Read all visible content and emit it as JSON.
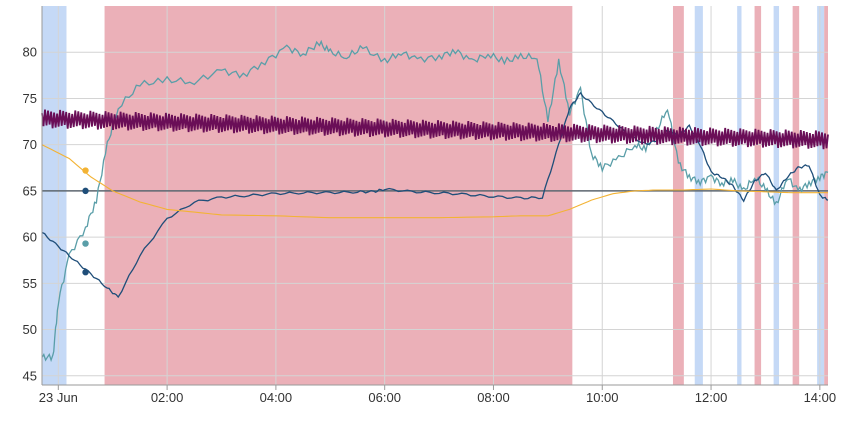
{
  "chart_data": {
    "type": "line",
    "title": "",
    "xlabel": "",
    "ylabel": "",
    "x_ticks": [
      "23 Jun",
      "02:00",
      "04:00",
      "06:00",
      "08:00",
      "10:00",
      "12:00",
      "14:00"
    ],
    "x_tick_hours": [
      0,
      2,
      4,
      6,
      8,
      10,
      12,
      14
    ],
    "xlim_hours": [
      -0.3,
      14.15
    ],
    "y_ticks": [
      45,
      50,
      55,
      60,
      65,
      70,
      75,
      80
    ],
    "ylim": [
      44,
      85
    ],
    "reference_line": 65,
    "grid": true,
    "legend": "none",
    "colors": {
      "blue_band": "#c5d9f6",
      "red_band": "#ebb0b8",
      "grid": "#d4d4d4",
      "reference": "#5d6770",
      "teal": "#5a9ea8",
      "navy": "#1f4e79",
      "orange": "#f3b334",
      "purple": "#6a0e57"
    },
    "bands": [
      {
        "kind": "blue",
        "start": -0.3,
        "end": 0.15
      },
      {
        "kind": "red",
        "start": 0.85,
        "end": 9.45
      },
      {
        "kind": "red",
        "start": 11.3,
        "end": 11.5
      },
      {
        "kind": "blue",
        "start": 11.7,
        "end": 11.85
      },
      {
        "kind": "blue",
        "start": 12.48,
        "end": 12.56
      },
      {
        "kind": "red",
        "start": 12.8,
        "end": 12.92
      },
      {
        "kind": "blue",
        "start": 13.15,
        "end": 13.25
      },
      {
        "kind": "red",
        "start": 13.5,
        "end": 13.62
      },
      {
        "kind": "blue",
        "start": 13.95,
        "end": 14.08
      },
      {
        "kind": "red",
        "start": 14.08,
        "end": 14.15
      }
    ],
    "series": [
      {
        "key": "teal",
        "x": [
          -0.3,
          -0.1,
          0.0,
          0.2,
          0.5,
          0.7,
          0.9,
          1.1,
          1.5,
          2.0,
          2.5,
          3.0,
          3.4,
          3.8,
          4.2,
          4.5,
          4.8,
          5.0,
          5.3,
          5.6,
          6.0,
          6.3,
          6.6,
          7.0,
          7.3,
          7.6,
          7.9,
          8.2,
          8.5,
          8.8,
          9.0,
          9.2,
          9.4,
          9.6,
          9.8,
          10.0,
          10.3,
          10.6,
          10.8,
          11.0,
          11.2,
          11.4,
          11.6,
          11.8,
          12.0,
          12.2,
          12.4,
          12.6,
          12.8,
          13.0,
          13.2,
          13.4,
          13.6,
          13.8,
          14.0,
          14.15
        ],
        "y": [
          47,
          47,
          53,
          58,
          61,
          64,
          70,
          74,
          76.5,
          77,
          76.8,
          78,
          77.5,
          79,
          80.5,
          79.8,
          81,
          80,
          79.5,
          80.5,
          79,
          80,
          79.2,
          79.5,
          80.2,
          79,
          79.8,
          79,
          79.5,
          79.5,
          72.5,
          79,
          73.5,
          76,
          69,
          67.5,
          68.5,
          70,
          69.5,
          71.5,
          74,
          68,
          66.5,
          66,
          66.5,
          65.8,
          66.2,
          65,
          66.5,
          65.2,
          63.5,
          66.5,
          65,
          65.8,
          66.5,
          67
        ]
      },
      {
        "key": "navy",
        "x": [
          -0.3,
          0.0,
          0.3,
          0.6,
          0.9,
          1.1,
          1.5,
          2.0,
          2.5,
          3.0,
          3.5,
          4.0,
          4.5,
          5.0,
          5.5,
          5.8,
          6.0,
          6.5,
          7.0,
          7.5,
          8.0,
          8.5,
          8.9,
          9.2,
          9.4,
          9.6,
          9.9,
          10.2,
          10.5,
          10.8,
          11.0,
          11.2,
          11.4,
          11.6,
          11.8,
          12.0,
          12.2,
          12.4,
          12.6,
          12.8,
          13.0,
          13.2,
          13.4,
          13.6,
          13.8,
          14.0,
          14.15
        ],
        "y": [
          60.5,
          59,
          57.5,
          56,
          54.5,
          53.5,
          58,
          62,
          63.8,
          64.3,
          64.5,
          64.7,
          64.8,
          64.8,
          64.9,
          64.9,
          65.2,
          64.9,
          64.8,
          64.6,
          64.4,
          64.2,
          64.3,
          70,
          74,
          75.5,
          74,
          72.5,
          71,
          70,
          70.5,
          71.5,
          71,
          72,
          70,
          67,
          66.5,
          65.5,
          64,
          66,
          67,
          65,
          66.5,
          67.5,
          67.8,
          64.5,
          64
        ]
      },
      {
        "key": "orange",
        "x": [
          -0.3,
          0.2,
          0.6,
          1.0,
          1.5,
          2.0,
          2.5,
          3.0,
          4.0,
          5.0,
          6.0,
          7.0,
          8.0,
          8.5,
          9.0,
          9.4,
          9.8,
          10.2,
          10.6,
          11.0,
          11.5,
          12.0,
          12.5,
          13.0,
          13.5,
          14.0,
          14.15
        ],
        "y": [
          70,
          68.5,
          66.5,
          65,
          63.8,
          63,
          62.7,
          62.4,
          62.3,
          62.1,
          62.1,
          62.1,
          62.2,
          62.3,
          62.3,
          63,
          64,
          64.7,
          65,
          65.1,
          65.1,
          65.2,
          65,
          64.9,
          64.8,
          64.8,
          64.8
        ]
      },
      {
        "key": "purple",
        "x": [
          -0.3,
          14.15
        ],
        "y": [
          72.8,
          70.5
        ]
      }
    ],
    "markers": [
      {
        "series": "orange",
        "x": 0.5,
        "y": 67.2
      },
      {
        "series": "navy",
        "x": 0.5,
        "y": 65
      },
      {
        "series": "teal",
        "x": 0.5,
        "y": 59.3
      },
      {
        "series": "navy",
        "x": 0.5,
        "y": 56.2
      }
    ]
  }
}
